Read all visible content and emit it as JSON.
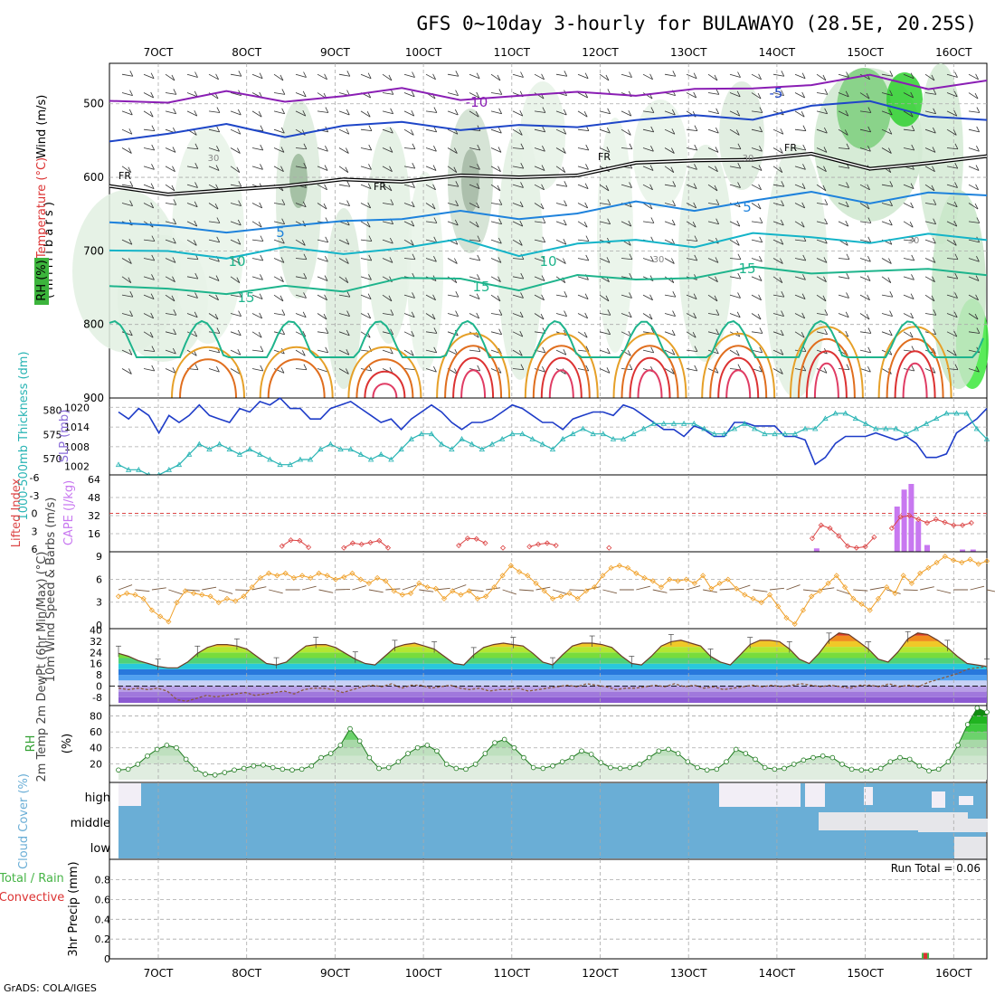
{
  "title": "GFS 0~10day 3-hourly for BULAWAYO (28.5E, 20.25S)",
  "credit": "GrADS: COLA/IGES",
  "run_total_label": "Run Total = 0.06",
  "colors": {
    "temp_purple": "#8a1eb4",
    "temp_blue": "#1e46c8",
    "temp_lightblue": "#1e82dc",
    "temp_cyan": "#14b4c8",
    "temp_green": "#1eb48c",
    "temp_orange": "#e6a028",
    "temp_dark_orange": "#e06e1e",
    "temp_red": "#dc3232",
    "slp": "#1e3cc8",
    "thickness": "#28b4b4",
    "cape": "#c878f0",
    "lifted": "#dc4646",
    "wind": "#f0a028",
    "rh": "#32a032",
    "cloud": "#6aaed6",
    "precip_conv": "#dc3232",
    "precip_total": "#46b446"
  },
  "chart_data": [
    {
      "type": "contour",
      "panel": "upper-air",
      "title": "",
      "ylabel": "( m i l l i b a r s )",
      "yaxis_labels": [
        "Wind (m/s)",
        "Temperature (°C)",
        "RH (%)"
      ],
      "x_ticks": [
        "7OCT",
        "8OCT",
        "9OCT",
        "10OCT",
        "11OCT",
        "12OCT",
        "13OCT",
        "14OCT",
        "15OCT",
        "16OCT"
      ],
      "y_ticks": [
        500,
        600,
        700,
        800,
        900
      ],
      "ylim": [
        900,
        445
      ],
      "contour_labels": [
        "-10",
        "-5",
        "FR",
        "FR",
        "FR",
        "FR",
        "5",
        "5",
        "10",
        "10",
        "15",
        "15",
        "15",
        "30",
        "30",
        "30",
        "30"
      ],
      "temperature_lines": [
        {
          "label": "-10",
          "level_mb": [
            496,
            493,
            490,
            493,
            488,
            485,
            488,
            492,
            487,
            482,
            486,
            478,
            470,
            468,
            475,
            468
          ]
        },
        {
          "label": "-5",
          "level_mb": [
            545,
            542,
            532,
            538,
            535,
            525,
            530,
            536,
            528,
            520,
            522,
            515,
            505,
            500,
            510,
            528
          ]
        },
        {
          "label": "FR",
          "level_mb": [
            605,
            630,
            615,
            608,
            610,
            600,
            598,
            605,
            590,
            585,
            578,
            570,
            575,
            585,
            578,
            578
          ]
        },
        {
          "label": "5",
          "level_mb": [
            660,
            672,
            668,
            670,
            662,
            650,
            652,
            655,
            645,
            640,
            640,
            632,
            625,
            628,
            625,
            626
          ]
        },
        {
          "label": "10",
          "level_mb": [
            705,
            700,
            705,
            702,
            700,
            695,
            690,
            700,
            693,
            688,
            688,
            682,
            680,
            685,
            684,
            680
          ]
        },
        {
          "label": "15",
          "level_mb": [
            755,
            745,
            760,
            752,
            748,
            742,
            738,
            748,
            740,
            735,
            735,
            728,
            724,
            730,
            728,
            726
          ]
        }
      ]
    },
    {
      "type": "line",
      "panel": "slp-thickness",
      "ylabel_left": "1000-500mb Thickness (dm)",
      "ylabel_right": "SLP (mb)",
      "thickness_ticks": [
        570,
        575,
        580
      ],
      "slp_ticks": [
        1002,
        1008,
        1014,
        1020
      ],
      "series": [
        {
          "name": "SLP (mb)",
          "values": [
            1018,
            1016,
            1019,
            1017,
            1012,
            1017,
            1015,
            1017,
            1020,
            1017,
            1016,
            1015,
            1019,
            1018,
            1021,
            1020,
            1022,
            1019,
            1019,
            1016,
            1016,
            1019,
            1020,
            1021,
            1019,
            1017,
            1015,
            1016,
            1013,
            1016,
            1018,
            1020,
            1018,
            1015,
            1013,
            1015,
            1015,
            1016,
            1018,
            1020,
            1019,
            1017,
            1015,
            1015,
            1013,
            1016,
            1017,
            1018,
            1018,
            1017,
            1020,
            1019,
            1017,
            1015,
            1013,
            1013,
            1011,
            1014,
            1013,
            1011,
            1011,
            1015,
            1015,
            1014,
            1014,
            1014,
            1011,
            1011,
            1010,
            1003,
            1005,
            1009,
            1011,
            1011,
            1011,
            1012,
            1011,
            1010,
            1011,
            1009,
            1005,
            1005,
            1006,
            1012,
            1014,
            1016,
            1019
          ]
        },
        {
          "name": "1000-500mb Thickness (dm)",
          "values": [
            569,
            568,
            568,
            567,
            567,
            568,
            569,
            571,
            573,
            572,
            573,
            572,
            571,
            572,
            571,
            570,
            569,
            569,
            570,
            570,
            572,
            573,
            572,
            572,
            571,
            570,
            571,
            570,
            572,
            574,
            575,
            575,
            573,
            572,
            574,
            573,
            572,
            573,
            574,
            575,
            575,
            574,
            573,
            572,
            574,
            575,
            576,
            575,
            575,
            574,
            574,
            575,
            576,
            577,
            577,
            577,
            577,
            577,
            576,
            575,
            575,
            576,
            577,
            576,
            575,
            575,
            575,
            575,
            576,
            576,
            578,
            579,
            579,
            578,
            577,
            576,
            576,
            576,
            575,
            576,
            577,
            578,
            579,
            579,
            579,
            576,
            574
          ]
        }
      ]
    },
    {
      "type": "bar",
      "panel": "cape-lifted",
      "ylabel_left": "Lifted Index",
      "ylabel_right": "CAPE (J/kg)",
      "lifted_ticks": [
        6,
        3,
        0,
        -3,
        -6
      ],
      "cape_ticks": [
        16,
        32,
        48,
        64
      ],
      "cape_values": [
        {
          "x": 144.5,
          "v": 3
        },
        {
          "x": 153.6,
          "v": 40
        },
        {
          "x": 154.4,
          "v": 55
        },
        {
          "x": 155.2,
          "v": 60
        },
        {
          "x": 156,
          "v": 27
        },
        {
          "x": 157,
          "v": 6
        },
        {
          "x": 161,
          "v": 2
        },
        {
          "x": 162.2,
          "v": 2
        }
      ],
      "lifted_index": [
        {
          "x": 84,
          "v": 5.5
        },
        {
          "x": 85,
          "v": 4.5
        },
        {
          "x": 86,
          "v": 4.6
        },
        {
          "x": 87,
          "v": 5.7
        },
        {
          "x": 91,
          "v": 5.8
        },
        {
          "x": 92,
          "v": 5.0
        },
        {
          "x": 93,
          "v": 5.2
        },
        {
          "x": 94,
          "v": 4.9
        },
        {
          "x": 95,
          "v": 4.6
        },
        {
          "x": 96,
          "v": 5.8
        },
        {
          "x": 104,
          "v": 5.4
        },
        {
          "x": 105,
          "v": 4.2
        },
        {
          "x": 106,
          "v": 4.3
        },
        {
          "x": 107,
          "v": 5.0
        },
        {
          "x": 109,
          "v": 5.8
        },
        {
          "x": 112,
          "v": 5.6
        },
        {
          "x": 113,
          "v": 5.2
        },
        {
          "x": 114,
          "v": 5.0
        },
        {
          "x": 115,
          "v": 5.4
        },
        {
          "x": 121,
          "v": 5.8
        },
        {
          "x": 144,
          "v": 4.2
        },
        {
          "x": 145,
          "v": 2.0
        },
        {
          "x": 146,
          "v": 2.5
        },
        {
          "x": 147,
          "v": 3.8
        },
        {
          "x": 148,
          "v": 5.5
        },
        {
          "x": 149,
          "v": 5.8
        },
        {
          "x": 150,
          "v": 5.6
        },
        {
          "x": 151,
          "v": 4.0
        },
        {
          "x": 153,
          "v": 2.5
        },
        {
          "x": 154,
          "v": 0.6
        },
        {
          "x": 155,
          "v": 0.4
        },
        {
          "x": 156,
          "v": 1.0
        },
        {
          "x": 157,
          "v": 1.6
        },
        {
          "x": 158,
          "v": 1.0
        },
        {
          "x": 159,
          "v": 1.5
        },
        {
          "x": 160,
          "v": 2.0
        },
        {
          "x": 161,
          "v": 2.0
        },
        {
          "x": 162,
          "v": 1.6
        }
      ]
    },
    {
      "type": "line",
      "panel": "wind10m",
      "ylabel": "10m Wind Speed & Barbs (m/s)",
      "y_ticks": [
        0,
        3,
        6,
        9
      ],
      "series": [
        {
          "name": "10m Wind Speed",
          "values": [
            3.8,
            4.2,
            4.0,
            3.5,
            2.0,
            1.2,
            0.5,
            3.0,
            4.5,
            4.2,
            4.0,
            3.8,
            3.0,
            3.5,
            3.2,
            3.8,
            5.0,
            6.2,
            6.8,
            6.5,
            6.8,
            6.2,
            6.5,
            6.2,
            6.8,
            6.5,
            6.0,
            6.3,
            6.8,
            6.0,
            5.5,
            6.2,
            5.8,
            4.5,
            4.0,
            4.2,
            5.5,
            5.0,
            4.8,
            3.5,
            4.5,
            4.0,
            4.5,
            3.5,
            3.8,
            5.0,
            6.5,
            7.8,
            7.0,
            6.5,
            5.5,
            4.5,
            3.5,
            3.8,
            4.2,
            3.5,
            4.5,
            5.0,
            6.5,
            7.5,
            7.8,
            7.5,
            6.8,
            6.2,
            5.8,
            5.0,
            6.0,
            5.8,
            6.0,
            5.5,
            6.5,
            4.8,
            5.5,
            6.0,
            4.8,
            4.0,
            3.5,
            3.0,
            4.0,
            2.5,
            1.0,
            0.2,
            2.0,
            3.8,
            4.5,
            5.5,
            6.5,
            5.0,
            3.5,
            2.8,
            2.0,
            3.5,
            5.0,
            4.2,
            6.5,
            5.5,
            6.8,
            7.5,
            8.2,
            9.0,
            8.5,
            8.2,
            8.6,
            8.0,
            8.4
          ]
        }
      ]
    },
    {
      "type": "area",
      "panel": "temp2m",
      "ylabel": "2m Temp 2m DewPt (6hr Min/Max) (°C)",
      "y_ticks": [
        -8,
        0,
        8,
        16,
        24,
        32,
        40
      ],
      "series": [
        {
          "name": "2m Temp",
          "values": [
            24,
            22,
            19,
            17,
            15,
            14,
            14,
            18,
            24,
            28,
            30,
            30,
            29,
            27,
            22,
            17,
            16,
            18,
            24,
            29,
            30,
            30,
            28,
            24,
            20,
            17,
            16,
            22,
            28,
            30,
            31,
            29,
            27,
            22,
            17,
            16,
            23,
            28,
            30,
            31,
            30,
            29,
            24,
            18,
            16,
            23,
            29,
            31,
            31,
            30,
            28,
            22,
            17,
            16,
            22,
            29,
            32,
            33,
            31,
            29,
            22,
            18,
            16,
            23,
            30,
            33,
            33,
            32,
            27,
            20,
            17,
            24,
            33,
            38,
            37,
            32,
            27,
            20,
            18,
            25,
            34,
            38,
            37,
            33,
            28,
            22,
            17,
            16,
            15
          ]
        },
        {
          "name": "2m DewPt",
          "values": [
            0,
            -1,
            0,
            -1,
            0,
            -2,
            -8,
            -9,
            -7,
            -5,
            -6,
            -5,
            -4,
            -3,
            -5,
            -4,
            -3,
            -2,
            -4,
            -1,
            0,
            0,
            -1,
            -3,
            -1,
            1,
            2,
            1,
            3,
            0,
            2,
            2,
            0,
            1,
            2,
            0,
            -1,
            0,
            -2,
            -1,
            -1,
            0,
            -2,
            -1,
            0,
            1,
            2,
            1,
            3,
            2,
            1,
            -1,
            0,
            0,
            1,
            2,
            1,
            3,
            1,
            2,
            0,
            1,
            -1,
            0,
            1,
            2,
            1,
            2,
            1,
            2,
            3,
            2,
            1,
            2,
            1,
            0,
            2,
            2,
            1,
            3,
            1,
            2,
            1,
            4,
            6,
            8,
            10,
            13,
            14,
            15
          ]
        }
      ]
    },
    {
      "type": "area",
      "panel": "rh2m",
      "ylabel": "2m RH (%)",
      "y_ticks": [
        20,
        40,
        60,
        80
      ],
      "series": [
        {
          "name": "2m RH",
          "values": [
            15,
            16,
            22,
            32,
            40,
            45,
            42,
            28,
            16,
            10,
            9,
            12,
            15,
            17,
            20,
            21,
            18,
            16,
            15,
            16,
            20,
            30,
            35,
            45,
            65,
            50,
            30,
            17,
            18,
            25,
            35,
            42,
            45,
            38,
            22,
            17,
            16,
            22,
            35,
            48,
            52,
            42,
            30,
            18,
            17,
            20,
            25,
            30,
            38,
            34,
            24,
            18,
            17,
            18,
            22,
            30,
            38,
            40,
            35,
            25,
            18,
            15,
            16,
            25,
            40,
            35,
            28,
            18,
            16,
            17,
            22,
            27,
            30,
            32,
            30,
            22,
            16,
            15,
            15,
            17,
            25,
            30,
            28,
            20,
            14,
            16,
            25,
            45,
            70,
            90,
            85
          ]
        }
      ]
    },
    {
      "type": "heatmap",
      "panel": "cloud-cover",
      "ylabel": "Cloud Cover (%)",
      "y_ticks": [
        "high",
        "middle",
        "low"
      ]
    },
    {
      "type": "bar",
      "panel": "precip",
      "ylabel": "3hr Precip (mm)",
      "ylabel_left": "Total / Rain Convective",
      "y_ticks": [
        0,
        0.2,
        0.4,
        0.6,
        0.8
      ],
      "bars": [
        {
          "x": 156.8,
          "total": 0.06,
          "convective": 0.06
        }
      ],
      "x_ticks": [
        "7OCT",
        "8OCT",
        "9OCT",
        "10OCT",
        "11OCT",
        "12OCT",
        "13OCT",
        "14OCT",
        "15OCT",
        "16OCT"
      ]
    }
  ]
}
